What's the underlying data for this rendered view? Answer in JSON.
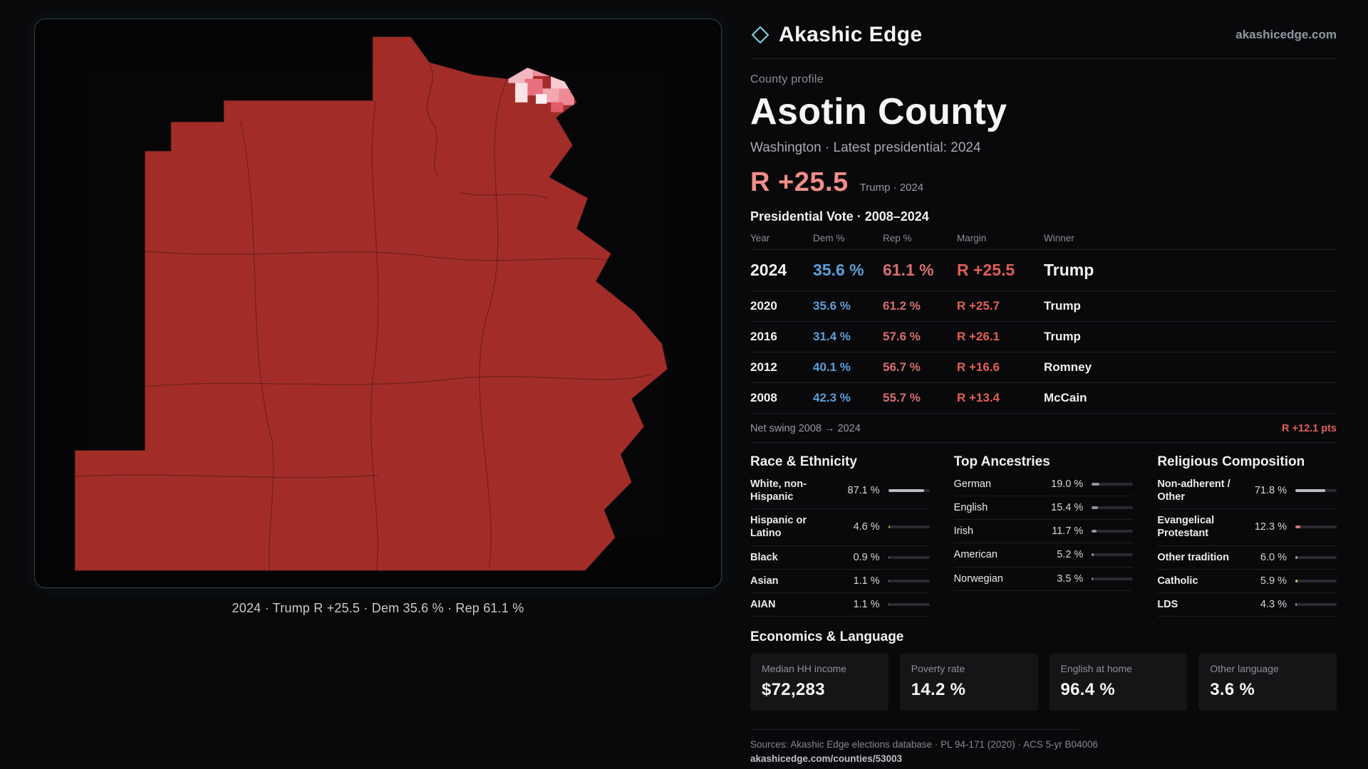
{
  "theme": {
    "accent_red": "#ef8d8a",
    "dem_blue": "#5c9fd9",
    "rep_red": "#d76f6f",
    "margin_red": "#e25f58",
    "teal": "#79cdd4",
    "county_fill": "#a22d28"
  },
  "brand": {
    "name": "Akashic Edge",
    "site": "akashicedge.com"
  },
  "map": {
    "caption": "2024 · Trump  R +25.5 · Dem 35.6 % · Rep 61.1 %"
  },
  "profile": {
    "eyebrow": "County profile",
    "title": "Asotin County",
    "subtitle": "Washington · Latest presidential: 2024",
    "headline_margin": "R +25.5",
    "headline_note": "Trump · 2024"
  },
  "vote_table": {
    "title": "Presidential Vote · 2008–2024",
    "columns": [
      "Year",
      "Dem %",
      "Rep %",
      "Margin",
      "Winner"
    ],
    "rows": [
      {
        "year": "2024",
        "dem": "35.6 %",
        "rep": "61.1 %",
        "margin": "R +25.5",
        "winner": "Trump",
        "em": true
      },
      {
        "year": "2020",
        "dem": "35.6 %",
        "rep": "61.2 %",
        "margin": "R +25.7",
        "winner": "Trump"
      },
      {
        "year": "2016",
        "dem": "31.4 %",
        "rep": "57.6 %",
        "margin": "R +26.1",
        "winner": "Trump"
      },
      {
        "year": "2012",
        "dem": "40.1 %",
        "rep": "56.7 %",
        "margin": "R +16.6",
        "winner": "Romney"
      },
      {
        "year": "2008",
        "dem": "42.3 %",
        "rep": "55.7 %",
        "margin": "R +13.4",
        "winner": "McCain"
      }
    ],
    "net_swing_label": "Net swing 2008 → 2024",
    "net_swing_value": "R +12.1 pts"
  },
  "demographics": {
    "race": {
      "title": "Race & Ethnicity",
      "rows": [
        {
          "label": "White, non-Hispanic",
          "value": "87.1 %",
          "pct": 87.1,
          "color": "#b9bdc5"
        },
        {
          "label": "Hispanic or Latino",
          "value": "4.6 %",
          "pct": 4.6,
          "color": "#e29a3c"
        },
        {
          "label": "Black",
          "value": "0.9 %",
          "pct": 0.9,
          "color": "#9aa0a8"
        },
        {
          "label": "Asian",
          "value": "1.1 %",
          "pct": 1.1,
          "color": "#9aa0a8"
        },
        {
          "label": "AIAN",
          "value": "1.1 %",
          "pct": 1.1,
          "color": "#d4703c"
        }
      ]
    },
    "ancestries": {
      "title": "Top Ancestries",
      "rows": [
        {
          "label": "German",
          "value": "19.0 %",
          "pct": 19.0,
          "color": "#8f959d"
        },
        {
          "label": "English",
          "value": "15.4 %",
          "pct": 15.4,
          "color": "#8f959d"
        },
        {
          "label": "Irish",
          "value": "11.7 %",
          "pct": 11.7,
          "color": "#8f959d"
        },
        {
          "label": "American",
          "value": "5.2 %",
          "pct": 5.2,
          "color": "#8f959d"
        },
        {
          "label": "Norwegian",
          "value": "3.5 %",
          "pct": 3.5,
          "color": "#8f959d"
        }
      ]
    },
    "religion": {
      "title": "Religious Composition",
      "rows": [
        {
          "label": "Non-adherent / Other",
          "value": "71.8 %",
          "pct": 71.8,
          "color": "#b9bdc5"
        },
        {
          "label": "Evangelical Protestant",
          "value": "12.3 %",
          "pct": 12.3,
          "color": "#e0737e"
        },
        {
          "label": "Other tradition",
          "value": "6.0 %",
          "pct": 6.0,
          "color": "#9aa0a8"
        },
        {
          "label": "Catholic",
          "value": "5.9 %",
          "pct": 5.9,
          "color": "#e3c24e"
        },
        {
          "label": "LDS",
          "value": "4.3 %",
          "pct": 4.3,
          "color": "#4fc4c4"
        }
      ]
    }
  },
  "economics": {
    "title": "Economics & Language",
    "stats": [
      {
        "label": "Median HH income",
        "value": "$72,283"
      },
      {
        "label": "Poverty rate",
        "value": "14.2 %"
      },
      {
        "label": "English at home",
        "value": "96.4 %"
      },
      {
        "label": "Other language",
        "value": "3.6 %"
      }
    ]
  },
  "footer": {
    "sources": "Sources: Akashic Edge elections database · PL 94-171 (2020) · ACS 5-yr B04006",
    "permalink": "akashicedge.com/counties/53003"
  }
}
